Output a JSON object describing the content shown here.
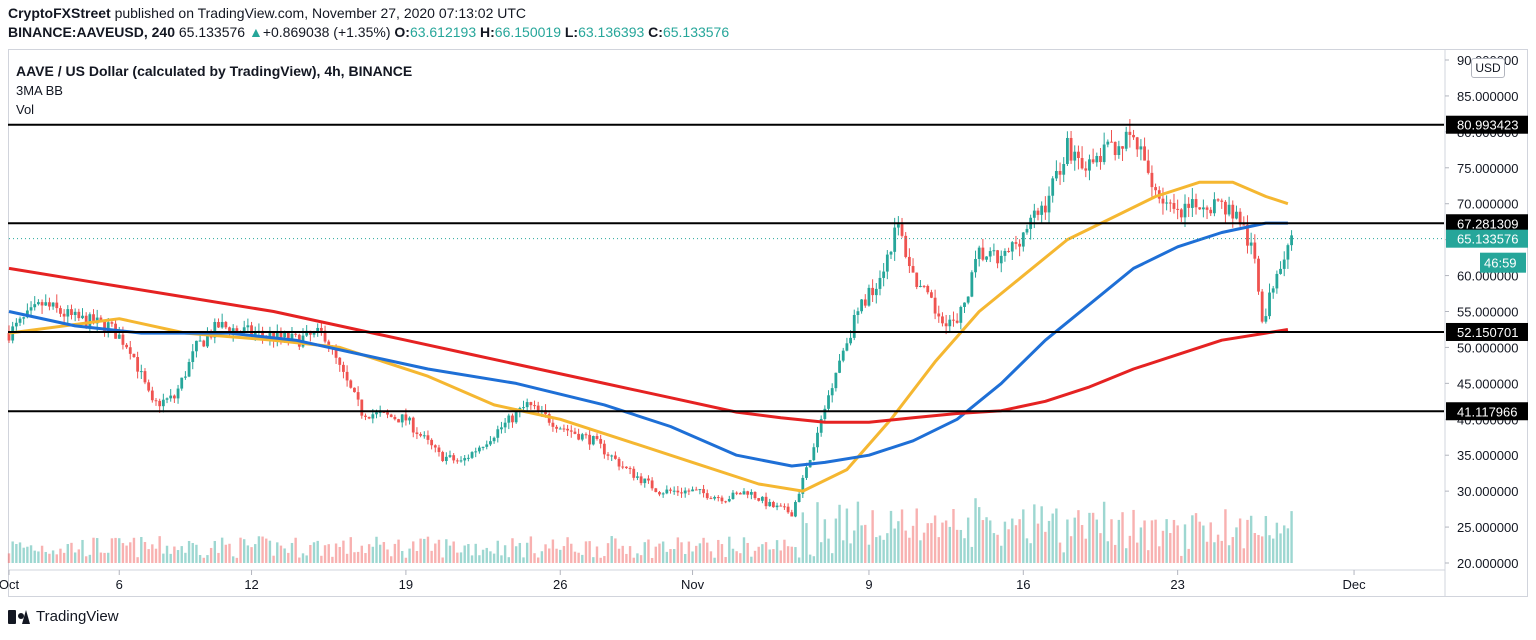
{
  "header": {
    "author": "CryptoFXStreet",
    "published_text": "published on TradingView.com, November 27, 2020 07:13:02 UTC",
    "symbol": "BINANCE:AAVEUSD, 240",
    "last": "65.133576",
    "change": "+0.869038 (+1.35%)",
    "o_label": "O:",
    "o_value": "63.612193",
    "h_label": "H:",
    "h_value": "66.150019",
    "l_label": "L:",
    "l_value": "63.136393",
    "c_label": "C:",
    "c_value": "65.133576"
  },
  "legend": {
    "title": "AAVE / US Dollar (calculated by TradingView), 4h, BINANCE",
    "indicator": "3MA BB",
    "volume": "Vol"
  },
  "currency_button": "USD",
  "footer": {
    "brand": "TradingView"
  },
  "colors": {
    "bull": "#26a69a",
    "bear": "#ef5350",
    "ma_short": "#f5b731",
    "ma_mid": "#1e6fd6",
    "ma_long": "#e52222",
    "level": "#000000",
    "price_tag": "#26a69a"
  },
  "chart_data": {
    "type": "candlestick",
    "symbol": "AAVEUSD",
    "timeframe": "4h",
    "y_axis": {
      "ticks": [
        "90.000000",
        "85.000000",
        "80.000000",
        "75.000000",
        "70.000000",
        "65.000000",
        "60.000000",
        "55.000000",
        "50.000000",
        "45.000000",
        "40.000000",
        "35.000000",
        "30.000000",
        "25.000000",
        "20.000000"
      ],
      "ylim": [
        20,
        90
      ]
    },
    "x_axis": {
      "ticks": [
        {
          "label": "Oct",
          "day": 0
        },
        {
          "label": "6",
          "day": 5
        },
        {
          "label": "12",
          "day": 11
        },
        {
          "label": "19",
          "day": 18
        },
        {
          "label": "26",
          "day": 25
        },
        {
          "label": "Nov",
          "day": 31
        },
        {
          "label": "9",
          "day": 39
        },
        {
          "label": "16",
          "day": 46
        },
        {
          "label": "23",
          "day": 53
        },
        {
          "label": "Dec",
          "day": 61
        }
      ],
      "start": "Oct 1 2020",
      "end": "Dec 3 2020"
    },
    "horizontal_levels": [
      {
        "value": 80.993423,
        "label": "80.993423"
      },
      {
        "value": 67.281309,
        "label": "67.281309"
      },
      {
        "value": 52.150701,
        "label": "52.150701"
      },
      {
        "value": 41.117966,
        "label": "41.117966"
      }
    ],
    "last_price": {
      "value": 65.133576,
      "label": "65.133576",
      "countdown": "46:59"
    },
    "price_path": [
      {
        "day": 0,
        "close": 52
      },
      {
        "day": 1.5,
        "close": 56
      },
      {
        "day": 3,
        "close": 54
      },
      {
        "day": 4.5,
        "close": 53
      },
      {
        "day": 5.5,
        "close": 50
      },
      {
        "day": 6.5,
        "close": 42
      },
      {
        "day": 7.5,
        "close": 43
      },
      {
        "day": 8.5,
        "close": 50
      },
      {
        "day": 9.5,
        "close": 53
      },
      {
        "day": 11,
        "close": 52
      },
      {
        "day": 13,
        "close": 51
      },
      {
        "day": 14.3,
        "close": 52
      },
      {
        "day": 15,
        "close": 47
      },
      {
        "day": 16,
        "close": 41
      },
      {
        "day": 18,
        "close": 40
      },
      {
        "day": 19.5,
        "close": 35
      },
      {
        "day": 20.5,
        "close": 34
      },
      {
        "day": 22,
        "close": 38
      },
      {
        "day": 23.5,
        "close": 42
      },
      {
        "day": 25,
        "close": 39
      },
      {
        "day": 26.5,
        "close": 37
      },
      {
        "day": 28,
        "close": 33
      },
      {
        "day": 29.5,
        "close": 30
      },
      {
        "day": 31,
        "close": 30
      },
      {
        "day": 32.5,
        "close": 29
      },
      {
        "day": 33.5,
        "close": 30
      },
      {
        "day": 34.5,
        "close": 28
      },
      {
        "day": 35.5,
        "close": 27
      },
      {
        "day": 36.5,
        "close": 36
      },
      {
        "day": 37.5,
        "close": 47
      },
      {
        "day": 38.5,
        "close": 55
      },
      {
        "day": 39.5,
        "close": 60
      },
      {
        "day": 40.3,
        "close": 67
      },
      {
        "day": 41,
        "close": 60
      },
      {
        "day": 42,
        "close": 55
      },
      {
        "day": 43,
        "close": 53
      },
      {
        "day": 44,
        "close": 63
      },
      {
        "day": 45,
        "close": 62
      },
      {
        "day": 46,
        "close": 66
      },
      {
        "day": 47,
        "close": 70
      },
      {
        "day": 48,
        "close": 78
      },
      {
        "day": 49,
        "close": 75
      },
      {
        "day": 50,
        "close": 78
      },
      {
        "day": 51,
        "close": 79
      },
      {
        "day": 52,
        "close": 72
      },
      {
        "day": 53,
        "close": 68
      },
      {
        "day": 54,
        "close": 70
      },
      {
        "day": 55,
        "close": 70
      },
      {
        "day": 55.8,
        "close": 68
      },
      {
        "day": 56.5,
        "close": 62
      },
      {
        "day": 56.9,
        "close": 53
      },
      {
        "day": 57.4,
        "close": 60
      },
      {
        "day": 57.9,
        "close": 64
      },
      {
        "day": 58.2,
        "close": 65.13
      }
    ],
    "moving_averages": [
      {
        "name": "ma_short",
        "color": "#f5b731",
        "points": [
          [
            0,
            52
          ],
          [
            5,
            54
          ],
          [
            8,
            52
          ],
          [
            12,
            51
          ],
          [
            15,
            50
          ],
          [
            19,
            46
          ],
          [
            22,
            42
          ],
          [
            25,
            40
          ],
          [
            28,
            37
          ],
          [
            31,
            34
          ],
          [
            34,
            31
          ],
          [
            36,
            30
          ],
          [
            38,
            33
          ],
          [
            40,
            40
          ],
          [
            42,
            48
          ],
          [
            44,
            55
          ],
          [
            46,
            60
          ],
          [
            48,
            65
          ],
          [
            50,
            68
          ],
          [
            52,
            71
          ],
          [
            54,
            73
          ],
          [
            55.5,
            73
          ],
          [
            57,
            71
          ],
          [
            58,
            70
          ]
        ]
      },
      {
        "name": "ma_mid",
        "color": "#1e6fd6",
        "points": [
          [
            0,
            55
          ],
          [
            3,
            53
          ],
          [
            6,
            52
          ],
          [
            10,
            52
          ],
          [
            13,
            51
          ],
          [
            16,
            49
          ],
          [
            19,
            47
          ],
          [
            23,
            45
          ],
          [
            27,
            42
          ],
          [
            30,
            39
          ],
          [
            33,
            35
          ],
          [
            35.5,
            33.5
          ],
          [
            37,
            34
          ],
          [
            39,
            35
          ],
          [
            41,
            37
          ],
          [
            43,
            40
          ],
          [
            45,
            45
          ],
          [
            47,
            51
          ],
          [
            49,
            56
          ],
          [
            51,
            61
          ],
          [
            53,
            64
          ],
          [
            55,
            66
          ],
          [
            57,
            67.3
          ],
          [
            58,
            67.3
          ]
        ]
      },
      {
        "name": "ma_long",
        "color": "#e52222",
        "points": [
          [
            0,
            61
          ],
          [
            4,
            59
          ],
          [
            8,
            57
          ],
          [
            12,
            55
          ],
          [
            15,
            53
          ],
          [
            18,
            51
          ],
          [
            21,
            49
          ],
          [
            24,
            47
          ],
          [
            27,
            45
          ],
          [
            30,
            43
          ],
          [
            33,
            41
          ],
          [
            35,
            40.2
          ],
          [
            37,
            39.6
          ],
          [
            39,
            39.6
          ],
          [
            41,
            40.2
          ],
          [
            43,
            40.8
          ],
          [
            45,
            41.2
          ],
          [
            47,
            42.5
          ],
          [
            49,
            44.5
          ],
          [
            51,
            47
          ],
          [
            53,
            49
          ],
          [
            55,
            51
          ],
          [
            57,
            52
          ],
          [
            58,
            52.5
          ]
        ]
      }
    ]
  }
}
